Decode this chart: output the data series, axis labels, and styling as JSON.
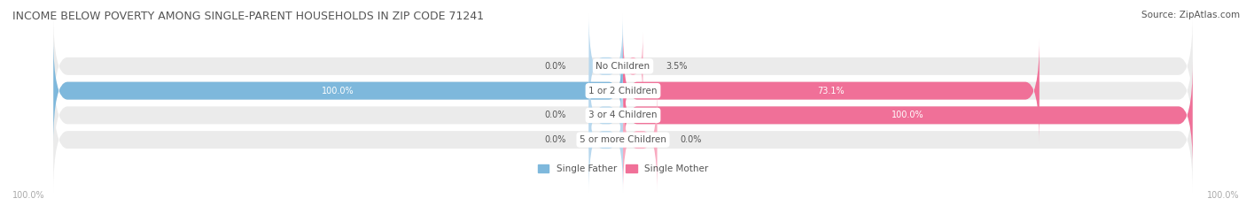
{
  "title": "INCOME BELOW POVERTY AMONG SINGLE-PARENT HOUSEHOLDS IN ZIP CODE 71241",
  "source": "Source: ZipAtlas.com",
  "categories": [
    "No Children",
    "1 or 2 Children",
    "3 or 4 Children",
    "5 or more Children"
  ],
  "single_father": [
    0.0,
    100.0,
    0.0,
    0.0
  ],
  "single_mother": [
    3.5,
    73.1,
    100.0,
    0.0
  ],
  "father_color": "#7eb8dc",
  "mother_color": "#f07098",
  "father_color_light": "#b8d8ee",
  "mother_color_light": "#f8aac0",
  "father_label": "Single Father",
  "mother_label": "Single Mother",
  "bar_bg_color": "#ebebeb",
  "bar_height": 0.72,
  "figsize": [
    14.06,
    2.33
  ],
  "dpi": 100,
  "title_fontsize": 9.0,
  "cat_fontsize": 7.5,
  "val_fontsize": 7.0,
  "source_fontsize": 7.5,
  "legend_fontsize": 7.5,
  "title_color": "#555555",
  "label_color": "#555555",
  "tick_color": "#aaaaaa",
  "center_label_color": "#555555"
}
